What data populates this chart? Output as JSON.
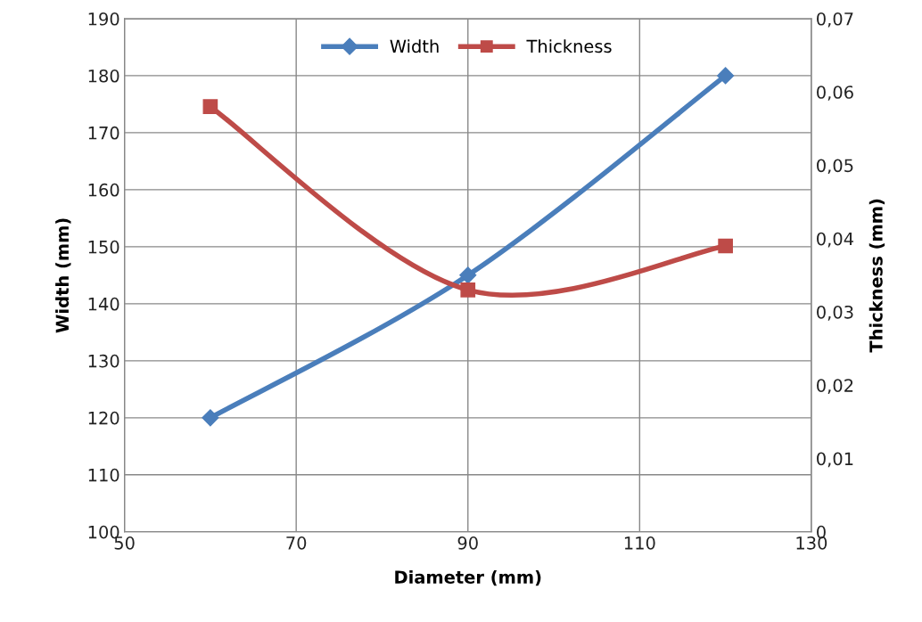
{
  "chart_data": {
    "type": "line",
    "xlabel": "Diameter (mm)",
    "ylabel": "Width (mm)",
    "y2label": "Thickness (mm)",
    "x": [
      60,
      90,
      120
    ],
    "series": [
      {
        "name": "Width",
        "color": "#4a7ebb",
        "values": [
          120,
          145,
          180
        ],
        "marker": "diamond"
      },
      {
        "name": "Thickness",
        "color": "#be4b48",
        "values": [
          0.058,
          0.033,
          0.039
        ],
        "marker": "square",
        "axis": "y2"
      }
    ],
    "xlim": [
      50,
      130
    ],
    "xticks": [
      50,
      70,
      90,
      110,
      130
    ],
    "ylim": [
      100,
      190
    ],
    "yticks": [
      100,
      110,
      120,
      130,
      140,
      150,
      160,
      170,
      180,
      190
    ],
    "y2lim": [
      0,
      0.07
    ],
    "y2ticks": [
      0,
      {
        "value": 0.01,
        "label": "0,01"
      },
      {
        "value": 0.02,
        "label": "0,02"
      },
      {
        "value": 0.03,
        "label": "0,03"
      },
      {
        "value": 0.04,
        "label": "0,04"
      },
      {
        "value": 0.05,
        "label": "0,05"
      },
      {
        "value": 0.06,
        "label": "0,06"
      },
      {
        "value": 0.07,
        "label": "0,07"
      }
    ],
    "grid": true,
    "legend": "top",
    "line_style": "solid"
  }
}
